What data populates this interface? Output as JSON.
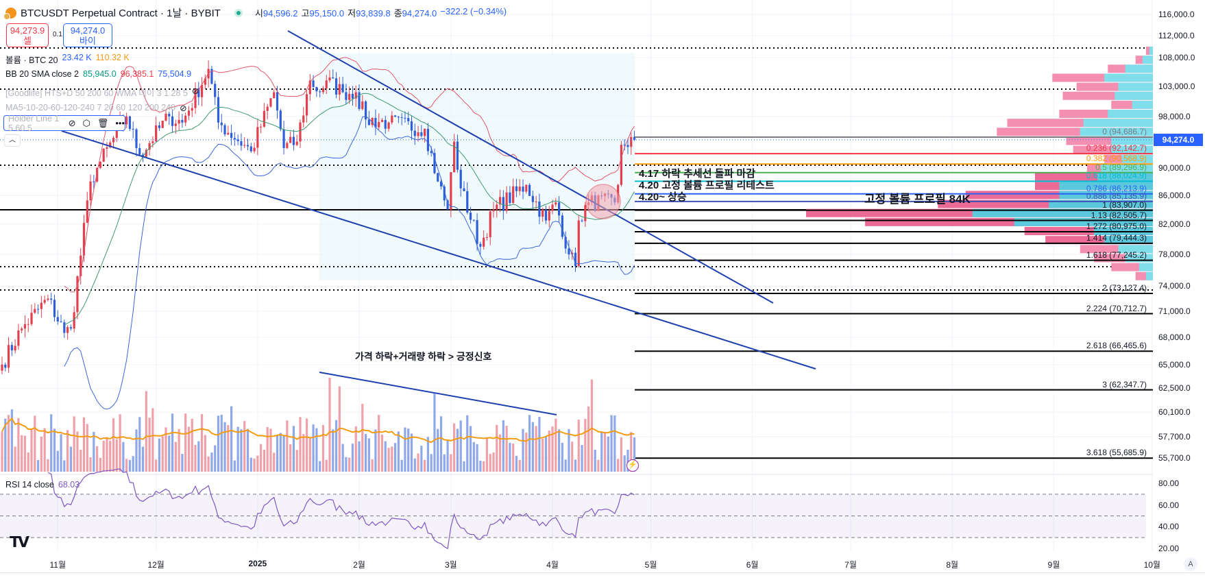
{
  "header": {
    "symbol_title": "BTCUSDT Perpetual Contract · 1날 · BYBIT",
    "ohlc": [
      {
        "label": "시",
        "value": "94,596.2"
      },
      {
        "label": "고",
        "value": "95,150.0"
      },
      {
        "label": "저",
        "value": "93,839.8"
      },
      {
        "label": "종",
        "value": "94,274.0"
      }
    ],
    "change": "−322.2 (−0.34%)"
  },
  "trade": {
    "sell_price": "94,273.9",
    "sell_label": "셀",
    "spread": "0.1",
    "buy_price": "94,274.0",
    "buy_label": "바이"
  },
  "legend": {
    "volume": {
      "name": "볼륨 · BTC 20",
      "value": "23.42 K",
      "ma": "110.32 K"
    },
    "bb": {
      "name": "BB 20 SMA close 2",
      "basis": "85,945.0",
      "upper": "96,385.1",
      "lower": "75,504.9"
    },
    "goodlife": "[Goodlife] HTS+D 50 200 60 WMA 데이 3 1 28 5",
    "ma": "MA5-10-20-60-120-240 7 20 60 120 200 240",
    "holder": "Holder Line 1 5 60 5"
  },
  "price_axis": {
    "ticks": [
      "116,000.0",
      "112,000.0",
      "108,000.0",
      "103,000.0",
      "98,000.0",
      "90,000.0",
      "86,000.0",
      "82,000.0",
      "78,000.0",
      "74,000.0",
      "71,000.0",
      "68,000.0",
      "65,000.0",
      "62,500.0",
      "60,100.0",
      "57,700.0",
      "55,700.0"
    ],
    "current_price": "94,274.0",
    "scale": "log"
  },
  "time_axis": {
    "labels": [
      "11월",
      "12월",
      "2025",
      "2월",
      "3월",
      "4월",
      "5월",
      "6월",
      "7월",
      "8월",
      "9월",
      "10월"
    ]
  },
  "fib_levels": [
    {
      "label": "0 (94,686.7)",
      "price": 94686.7,
      "color": "#787b86"
    },
    {
      "label": "0.236 (92,142.7)",
      "price": 92142.7,
      "color": "#f23645"
    },
    {
      "label": "0.382 (90,568.9)",
      "price": 90568.9,
      "color": "#ff9800"
    },
    {
      "label": "0.5 (89,296.9)",
      "price": 89296.9,
      "color": "#4caf50"
    },
    {
      "label": "0.618 (88,024.9)",
      "price": 88024.9,
      "color": "#00bcd4"
    },
    {
      "label": "0.786 (86,213.9)",
      "price": 86213.9,
      "color": "#2962ff"
    },
    {
      "label": "0.886 (85,135.9)",
      "price": 85135.9,
      "color": "#3f51b5"
    },
    {
      "label": "1 (83,907.0)",
      "price": 83907.0,
      "color": "#000000"
    },
    {
      "label": "1.13 (82,505.7)",
      "price": 82505.7,
      "color": "#000000"
    },
    {
      "label": "1.272 (80,975.0)",
      "price": 80975.0,
      "color": "#000000"
    },
    {
      "label": "1.414 (79,444.3)",
      "price": 79444.3,
      "color": "#000000"
    },
    {
      "label": "1.618 (77,245.2)",
      "price": 77245.2,
      "color": "#000000"
    },
    {
      "label": "2 (73,127.4)",
      "price": 73127.4,
      "color": "#000000"
    },
    {
      "label": "2.224 (70,712.7)",
      "price": 70712.7,
      "color": "#000000"
    },
    {
      "label": "2.618 (66,465.6)",
      "price": 66465.6,
      "color": "#000000"
    },
    {
      "label": "3 (62,347.7)",
      "price": 62347.7,
      "color": "#000000"
    },
    {
      "label": "3.618 (55,685.9)",
      "price": 55685.9,
      "color": "#000000"
    }
  ],
  "annotations": {
    "note1": "4.17 하락 추세선 돌파 마감",
    "note2": "4.20 고정 볼륨 프로필 리테스트",
    "note3": "4.20~ 상승",
    "profile": "고정 볼륨 프로필 84K",
    "volume_note": "가격 하락+거래량 하락 > 긍정신호"
  },
  "volume_profile": {
    "colors": {
      "sell": "#f48fb1",
      "buy": "#80deea",
      "sell_value_area": "#ec6a96",
      "buy_value_area": "#5bc8dc"
    },
    "rows": [
      [
        2,
        1
      ],
      [
        5,
        3
      ],
      [
        13,
        8
      ],
      [
        29,
        14
      ],
      [
        22,
        10
      ],
      [
        26,
        11
      ],
      [
        12,
        6
      ],
      [
        27,
        13
      ],
      [
        42,
        20
      ],
      [
        45,
        21
      ],
      [
        25,
        12
      ],
      [
        23,
        12
      ],
      [
        14,
        9
      ],
      [
        19,
        15
      ],
      [
        34,
        16
      ],
      [
        34,
        27
      ],
      [
        54,
        27
      ],
      [
        62,
        30
      ],
      [
        100,
        52
      ],
      [
        83,
        40
      ],
      [
        37,
        17
      ],
      [
        31,
        14
      ],
      [
        21,
        10
      ],
      [
        17,
        8
      ],
      [
        12,
        4
      ],
      [
        5,
        2
      ]
    ]
  },
  "rsi": {
    "label": "RSI 14 close",
    "value": "68.03",
    "ticks": [
      "80.00",
      "60.00",
      "40.00",
      "20.00"
    ],
    "color": "#7e57c2"
  },
  "colors": {
    "up": "#e2404f",
    "down": "#2f5fd8",
    "vol_up": "#f0a0a8",
    "vol_down": "#8ea8ea",
    "bb_basis": "#3f9a6e",
    "bb_upper": "#e0566a",
    "bb_lower": "#3d66d6",
    "vol_ma": "#f39c12",
    "trendline": "#1e3fae"
  },
  "bottom": {
    "auto_label": "A"
  }
}
